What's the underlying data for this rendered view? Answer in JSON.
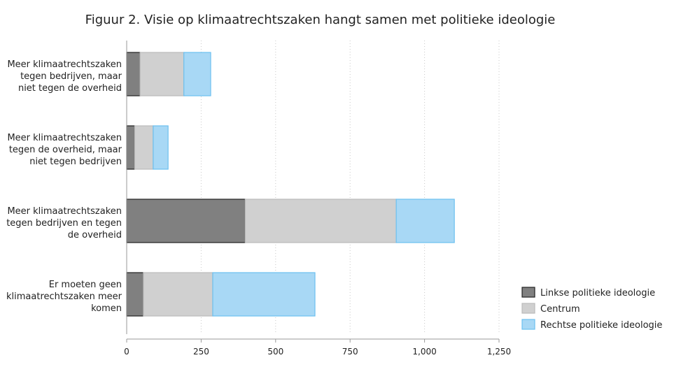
{
  "chart_data": {
    "type": "bar",
    "orientation": "horizontal",
    "stacked": true,
    "title": "Figuur 2. Visie op klimaatrechtszaken hangt samen met politieke ideologie",
    "xlabel": "",
    "ylabel": "",
    "xlim": [
      0,
      1250
    ],
    "xticks": [
      0,
      250,
      500,
      750,
      1000,
      1250
    ],
    "xtick_labels": [
      "0",
      "250",
      "500",
      "750",
      "1,000",
      "1,250"
    ],
    "grid": "vertical dotted",
    "legend_position": "bottom-right",
    "categories": [
      [
        "Meer klimaatrechtszaken",
        "tegen bedrijven, maar",
        "niet tegen de overheid"
      ],
      [
        "Meer klimaatrechtszaken",
        "tegen de overheid, maar",
        "niet tegen bedrijven"
      ],
      [
        "Meer klimaatrechtszaken",
        "tegen bedrijven en tegen",
        "de overheid"
      ],
      [
        "Er moeten geen",
        "klimaatrechtszaken meer",
        "komen"
      ]
    ],
    "series": [
      {
        "name": "Linkse politieke ideologie",
        "color": "#808080",
        "stroke": "#222222",
        "values": [
          45,
          27,
          398,
          56
        ]
      },
      {
        "name": "Centrum",
        "color": "#d0d0d0",
        "stroke": "#bbbbbb",
        "values": [
          147,
          62,
          507,
          233
        ]
      },
      {
        "name": "Rechtse politieke ideologie",
        "color": "#a8d8f5",
        "stroke": "#6cc0f0",
        "values": [
          90,
          50,
          195,
          343
        ]
      }
    ]
  }
}
